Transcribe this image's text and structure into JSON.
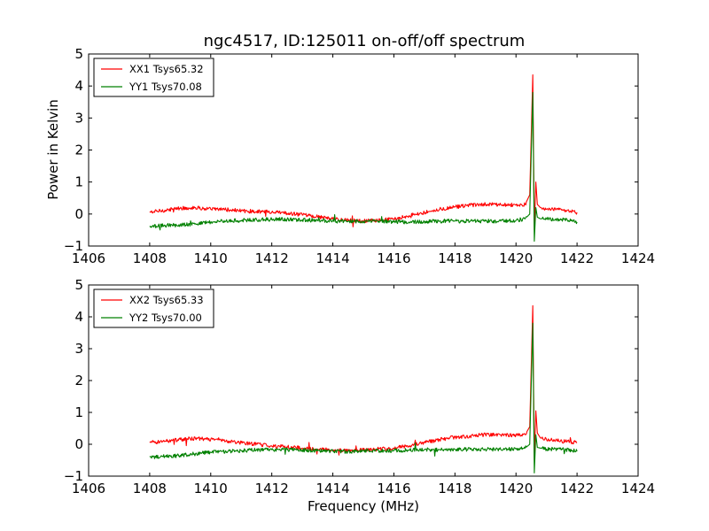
{
  "colors": {
    "xx": "#ff0000",
    "yy": "#008000"
  },
  "chart_data": {
    "type": "line",
    "title": "ngc4517, ID:125011 on-off/off spectrum",
    "ylabel": "Power in Kelvin",
    "xlabel": "Frequency (MHz)",
    "xlim": [
      1406,
      1424
    ],
    "ylim": [
      -1,
      5
    ],
    "xticks": [
      "1406",
      "1408",
      "1410",
      "1412",
      "1414",
      "1416",
      "1418",
      "1420",
      "1422",
      "1424"
    ],
    "yticks": [
      "−1",
      "0",
      "1",
      "2",
      "3",
      "4",
      "5"
    ],
    "grid": false,
    "legend_position": "top-left",
    "panels": [
      {
        "legend": [
          "XX1 Tsys65.32",
          "YY1 Tsys70.08"
        ],
        "series": [
          {
            "name": "XX1 Tsys65.32",
            "color": "#ff0000",
            "x": [
              1408.0,
              1408.5,
              1409.0,
              1409.5,
              1410.0,
              1410.5,
              1411.0,
              1411.5,
              1412.0,
              1412.5,
              1413.0,
              1413.5,
              1414.0,
              1414.5,
              1415.0,
              1415.5,
              1416.0,
              1416.5,
              1417.0,
              1417.5,
              1418.0,
              1418.5,
              1419.0,
              1419.5,
              1420.0,
              1420.3,
              1420.45,
              1420.55,
              1420.6,
              1420.65,
              1420.7,
              1420.8,
              1421.0,
              1421.5,
              1422.0
            ],
            "y": [
              0.05,
              0.12,
              0.18,
              0.2,
              0.15,
              0.14,
              0.1,
              0.08,
              0.06,
              0.02,
              -0.03,
              -0.08,
              -0.15,
              -0.2,
              -0.22,
              -0.2,
              -0.15,
              -0.05,
              0.05,
              0.15,
              0.22,
              0.27,
              0.3,
              0.3,
              0.28,
              0.3,
              0.6,
              4.35,
              -0.5,
              1.0,
              0.3,
              0.2,
              0.15,
              0.12,
              0.05
            ]
          },
          {
            "name": "YY1 Tsys70.08",
            "color": "#008000",
            "x": [
              1408.0,
              1408.5,
              1409.0,
              1409.5,
              1410.0,
              1410.5,
              1411.0,
              1411.5,
              1412.0,
              1412.5,
              1413.0,
              1413.5,
              1414.0,
              1414.5,
              1415.0,
              1415.5,
              1416.0,
              1416.5,
              1417.0,
              1417.5,
              1418.0,
              1418.5,
              1419.0,
              1419.5,
              1420.0,
              1420.3,
              1420.45,
              1420.55,
              1420.6,
              1420.65,
              1420.7,
              1420.8,
              1421.0,
              1421.5,
              1422.0
            ],
            "y": [
              -0.4,
              -0.35,
              -0.35,
              -0.3,
              -0.25,
              -0.22,
              -0.2,
              -0.18,
              -0.17,
              -0.17,
              -0.18,
              -0.2,
              -0.22,
              -0.23,
              -0.22,
              -0.22,
              -0.24,
              -0.25,
              -0.24,
              -0.22,
              -0.22,
              -0.22,
              -0.22,
              -0.22,
              -0.2,
              -0.15,
              0.0,
              3.8,
              -0.85,
              0.2,
              -0.1,
              -0.15,
              -0.15,
              -0.17,
              -0.25
            ]
          }
        ]
      },
      {
        "legend": [
          "XX2 Tsys65.33",
          "YY2 Tsys70.00"
        ],
        "series": [
          {
            "name": "XX2 Tsys65.33",
            "color": "#ff0000",
            "x": [
              1408.0,
              1408.5,
              1409.0,
              1409.5,
              1410.0,
              1410.5,
              1411.0,
              1411.5,
              1412.0,
              1412.5,
              1413.0,
              1413.5,
              1414.0,
              1414.5,
              1415.0,
              1415.5,
              1416.0,
              1416.5,
              1417.0,
              1417.5,
              1418.0,
              1418.5,
              1419.0,
              1419.5,
              1420.0,
              1420.3,
              1420.45,
              1420.55,
              1420.6,
              1420.65,
              1420.7,
              1420.8,
              1421.0,
              1421.5,
              1422.0
            ],
            "y": [
              0.05,
              0.1,
              0.15,
              0.18,
              0.15,
              0.1,
              0.05,
              0.0,
              -0.05,
              -0.08,
              -0.12,
              -0.15,
              -0.18,
              -0.2,
              -0.18,
              -0.15,
              -0.12,
              -0.05,
              0.05,
              0.15,
              0.22,
              0.26,
              0.3,
              0.3,
              0.28,
              0.3,
              0.55,
              4.35,
              -0.5,
              1.05,
              0.35,
              0.2,
              0.15,
              0.1,
              0.05
            ]
          },
          {
            "name": "YY2 Tsys70.00",
            "color": "#008000",
            "x": [
              1408.0,
              1408.5,
              1409.0,
              1409.5,
              1410.0,
              1410.5,
              1411.0,
              1411.5,
              1412.0,
              1412.5,
              1413.0,
              1413.5,
              1414.0,
              1414.5,
              1415.0,
              1415.5,
              1416.0,
              1416.5,
              1417.0,
              1417.5,
              1418.0,
              1418.5,
              1419.0,
              1419.5,
              1420.0,
              1420.3,
              1420.45,
              1420.55,
              1420.6,
              1420.65,
              1420.7,
              1420.8,
              1421.0,
              1421.5,
              1422.0
            ],
            "y": [
              -0.4,
              -0.38,
              -0.35,
              -0.3,
              -0.25,
              -0.22,
              -0.2,
              -0.18,
              -0.17,
              -0.17,
              -0.18,
              -0.2,
              -0.22,
              -0.23,
              -0.2,
              -0.2,
              -0.2,
              -0.18,
              -0.17,
              -0.17,
              -0.16,
              -0.16,
              -0.16,
              -0.16,
              -0.15,
              -0.12,
              0.0,
              3.8,
              -0.9,
              0.3,
              -0.1,
              -0.12,
              -0.15,
              -0.15,
              -0.22
            ]
          }
        ]
      }
    ]
  }
}
